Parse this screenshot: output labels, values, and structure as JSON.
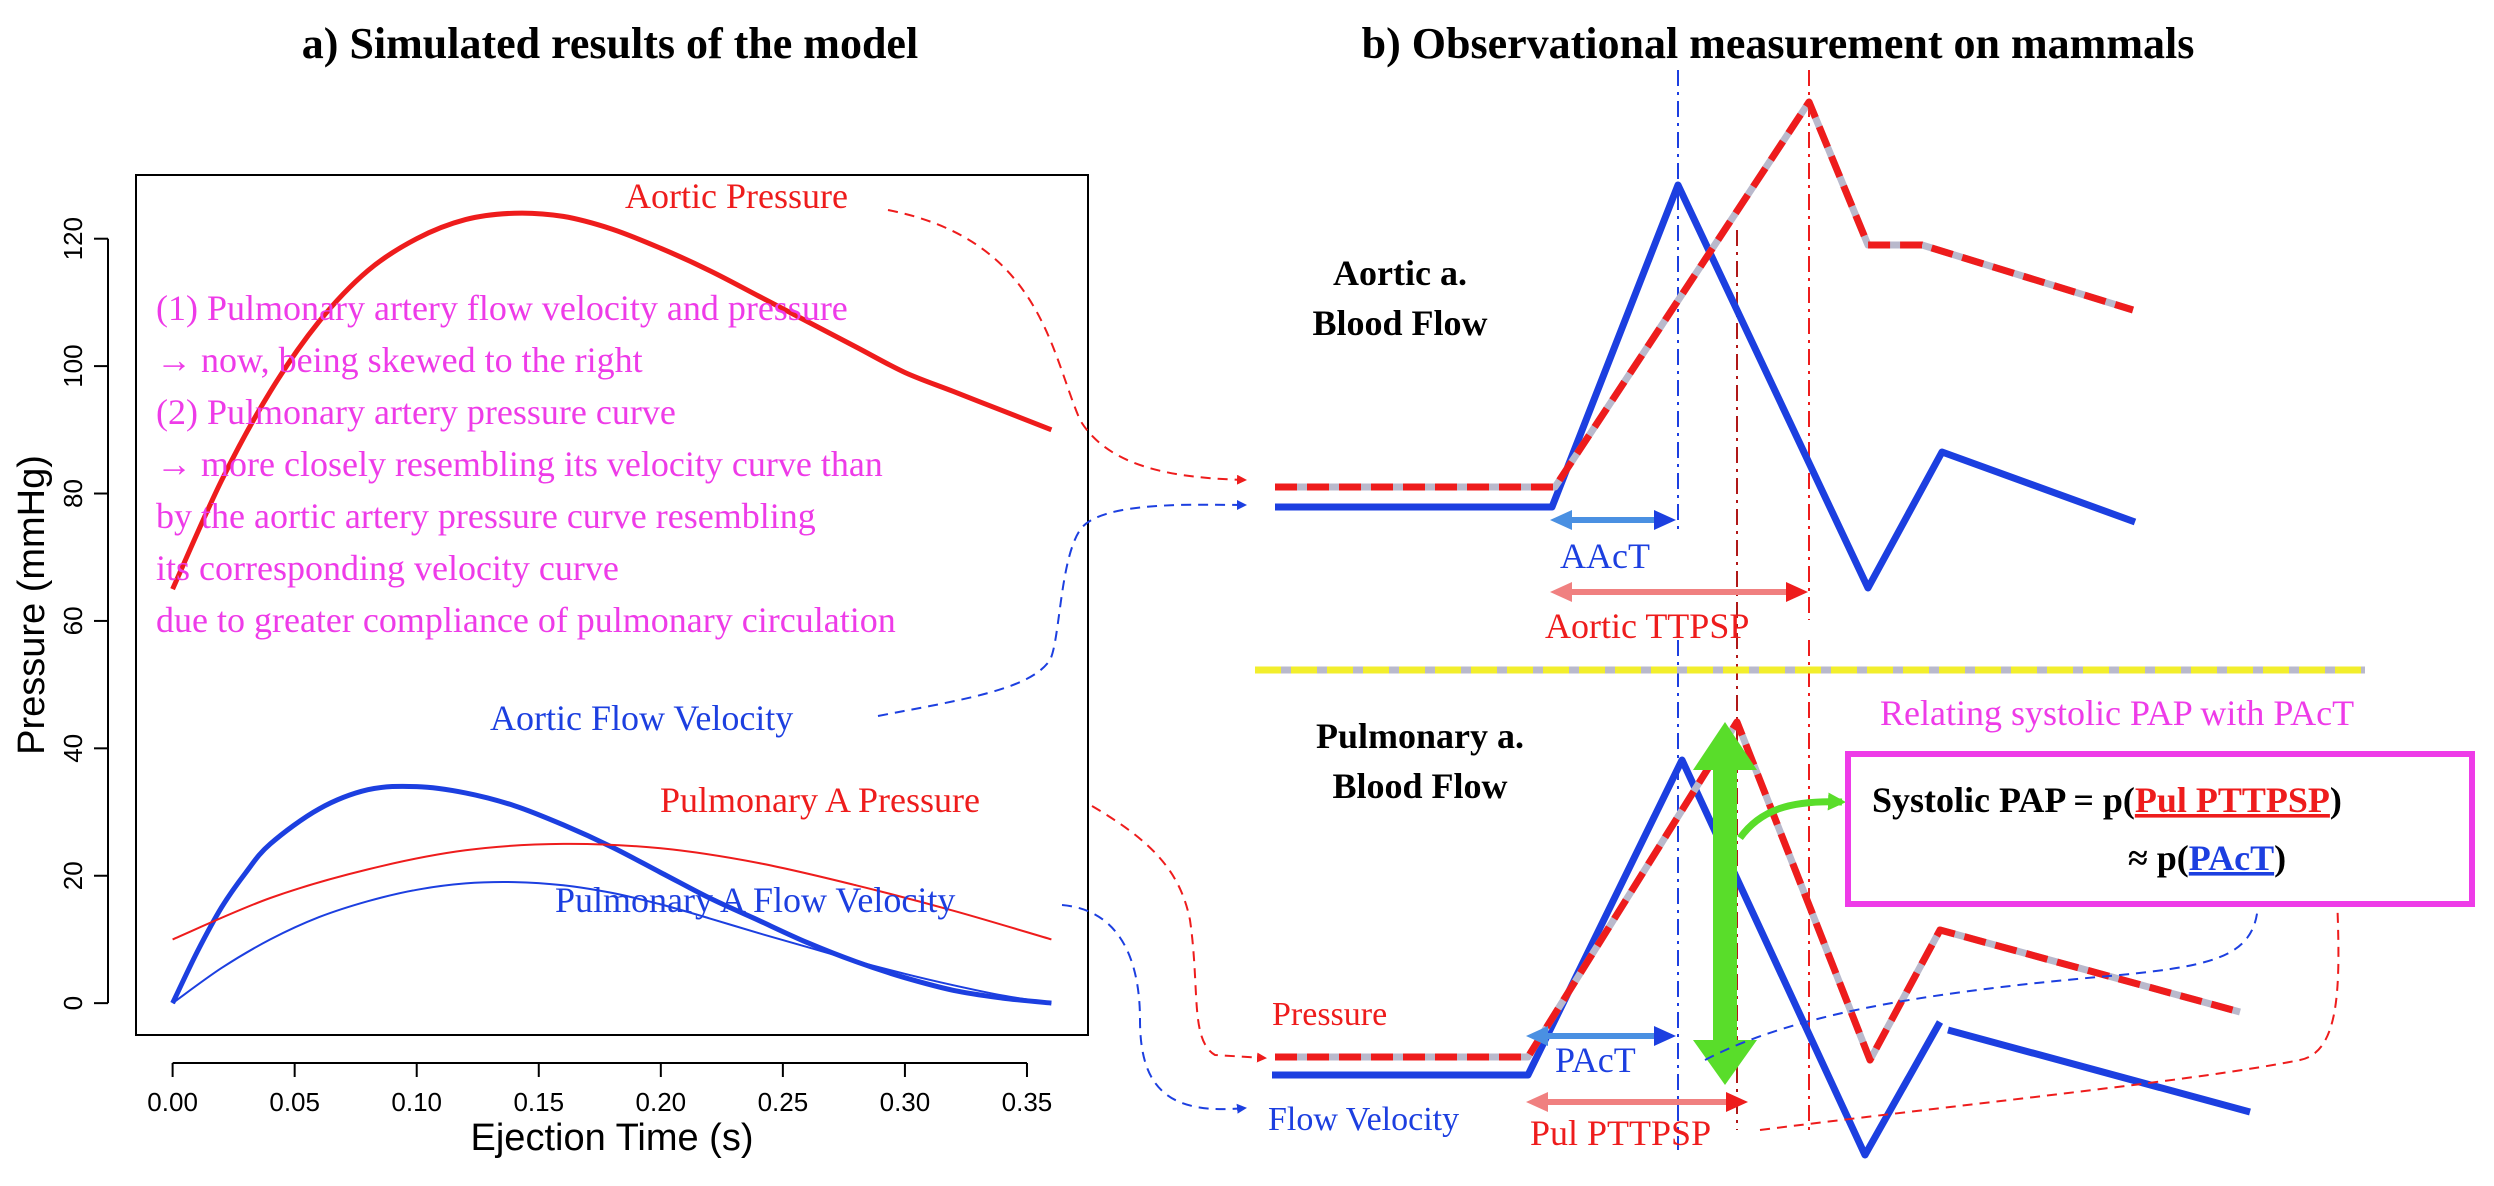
{
  "panel_a": {
    "title": "a) Simulated results of the model",
    "chart_data": {
      "type": "line",
      "xlabel": "Ejection Time (s)",
      "ylabel": "Pressure (mmHg)",
      "xlim": [
        -0.015,
        0.375
      ],
      "ylim": [
        -5,
        130
      ],
      "xticks": [
        0.0,
        0.05,
        0.1,
        0.15,
        0.2,
        0.25,
        0.3,
        0.35
      ],
      "xtick_labels": [
        "0.00",
        "0.05",
        "0.10",
        "0.15",
        "0.20",
        "0.25",
        "0.30",
        "0.35"
      ],
      "yticks": [
        0,
        20,
        40,
        60,
        80,
        100,
        120
      ],
      "ytick_labels": [
        "0",
        "20",
        "40",
        "60",
        "80",
        "100",
        "120"
      ],
      "grid": false,
      "series": [
        {
          "name": "Aortic Pressure",
          "color": "#ee1c1c",
          "width": "thick",
          "x": [
            0,
            0.02,
            0.04,
            0.06,
            0.08,
            0.1,
            0.12,
            0.14,
            0.16,
            0.18,
            0.2,
            0.22,
            0.24,
            0.26,
            0.28,
            0.3,
            0.32,
            0.34,
            0.36
          ],
          "y": [
            65,
            82,
            96,
            107,
            115,
            120,
            123,
            124,
            123.5,
            121.5,
            118.5,
            115,
            111,
            107,
            103,
            99,
            96,
            93,
            90
          ]
        },
        {
          "name": "Aortic Flow Velocity",
          "color": "#1c3fe0",
          "width": "thick",
          "x": [
            0,
            0.01,
            0.02,
            0.03,
            0.04,
            0.06,
            0.08,
            0.1,
            0.12,
            0.14,
            0.16,
            0.18,
            0.2,
            0.22,
            0.24,
            0.26,
            0.28,
            0.3,
            0.32,
            0.34,
            0.36
          ],
          "y": [
            0,
            8,
            15,
            20.5,
            25,
            30.5,
            33.5,
            34,
            33,
            31,
            28,
            24.5,
            20.5,
            16.5,
            13,
            9.5,
            6.5,
            4,
            2,
            0.8,
            0
          ]
        },
        {
          "name": "Pulmonary A Pressure",
          "color": "#ee1c1c",
          "width": "thin",
          "x": [
            0,
            0.04,
            0.08,
            0.12,
            0.16,
            0.2,
            0.24,
            0.28,
            0.32,
            0.36
          ],
          "y": [
            10,
            16.5,
            21,
            24,
            25,
            24.3,
            22,
            18.5,
            14.5,
            10
          ]
        },
        {
          "name": "Pulmonary A Flow Velocity",
          "color": "#1c3fe0",
          "width": "thin",
          "x": [
            0,
            0.02,
            0.04,
            0.06,
            0.08,
            0.1,
            0.12,
            0.14,
            0.16,
            0.18,
            0.2,
            0.22,
            0.24,
            0.26,
            0.28,
            0.3,
            0.32,
            0.34,
            0.36
          ],
          "y": [
            0,
            5.5,
            10,
            13.5,
            16,
            17.8,
            18.8,
            19,
            18.5,
            17.3,
            15.5,
            13.3,
            11,
            8.8,
            6.6,
            4.6,
            2.8,
            1.2,
            0
          ]
        }
      ],
      "series_labels": {
        "aortic_pressure": "Aortic Pressure",
        "aortic_flow": "Aortic Flow Velocity",
        "pulmonary_pressure": "Pulmonary A Pressure",
        "pulmonary_flow": "Pulmonary A Flow Velocity"
      },
      "annotation_lines": [
        "(1) Pulmonary artery flow velocity and pressure",
        "→ now, being skewed to the right",
        "(2) Pulmonary artery pressure curve",
        "→ more closely resembling its velocity curve than",
        "by the aortic artery pressure curve resembling",
        "its corresponding velocity curve",
        "due to greater compliance of pulmonary circulation"
      ]
    }
  },
  "panel_b": {
    "title": "b) Observational measurement on mammals",
    "aortic_label_line1": "Aortic a.",
    "aortic_label_line2": "Blood Flow",
    "pulmonary_label_line1": "Pulmonary a.",
    "pulmonary_label_line2": "Blood Flow",
    "aact_label": "AAcT",
    "aortic_ttpsp_label": "Aortic TTPSP",
    "pressure_label": "Pressure",
    "flow_velocity_label": "Flow Velocity",
    "pact_label": "PAcT",
    "pul_pttpsp_label": "Pul PTTPSP",
    "relating_label": "Relating systolic PAP with PAcT",
    "box_line1_prefix": "Systolic PAP = p(",
    "box_line1_link": "Pul PTTPSP",
    "box_line1_suffix": ")",
    "box_line2_prefix": "≈ p(",
    "box_line2_link": "PAcT",
    "box_line2_suffix": ")"
  },
  "colors": {
    "red": "#ee1c1c",
    "blue": "#1c3fe0",
    "magenta": "#ee3be8",
    "green": "#59dd2a",
    "yellow": "#f2ee2c",
    "dash_gray": "#b9b9cc"
  }
}
